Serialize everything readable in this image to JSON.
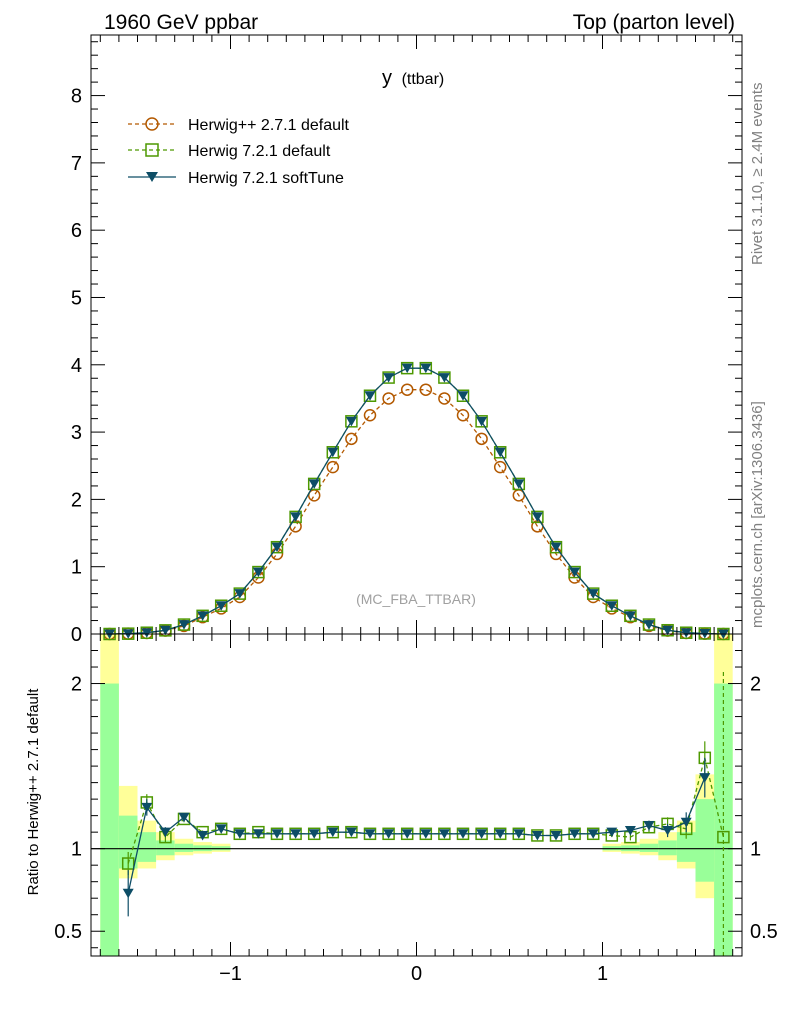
{
  "header": {
    "left": "1960 GeV ppbar",
    "right": "Top (parton level)"
  },
  "side_labels": {
    "rivet": "Rivet 3.1.10, ≥ 2.4M events",
    "mcplots": "mcplots.cern.ch [arXiv:1306.3436]"
  },
  "analysis_tag": "(MC_FBA_TTBAR)",
  "plot_title": {
    "main": "y",
    "sub": "(ttbar)"
  },
  "ratio_ylabel": "Ratio to Herwig++ 2.7.1 default",
  "colors": {
    "herwigpp": "#b35900",
    "herwig72": "#4d9900",
    "softtune": "#0d4d66",
    "band_yellow": "#ffff99",
    "band_green": "#99ff99"
  },
  "chart_data": {
    "type": "line",
    "xlim": [
      -1.75,
      1.75
    ],
    "main_ylim": [
      0,
      8.9
    ],
    "ratio_ylim": [
      0.35,
      2.3
    ],
    "x_ticks": [
      -1,
      0,
      1
    ],
    "x_tick_labels": [
      "−1",
      "0",
      "1"
    ],
    "main_y_ticks": [
      0,
      1,
      2,
      3,
      4,
      5,
      6,
      7,
      8
    ],
    "main_y_tick_labels": [
      "0",
      "1",
      "2",
      "3",
      "4",
      "5",
      "6",
      "7",
      "8"
    ],
    "ratio_y_ticks": [
      0.5,
      1,
      2
    ],
    "ratio_y_tick_labels": [
      "0.5",
      "1",
      "2"
    ],
    "x": [
      -1.65,
      -1.55,
      -1.45,
      -1.35,
      -1.25,
      -1.15,
      -1.05,
      -0.95,
      -0.85,
      -0.75,
      -0.65,
      -0.55,
      -0.45,
      -0.35,
      -0.25,
      -0.15,
      -0.05,
      0.05,
      0.15,
      0.25,
      0.35,
      0.45,
      0.55,
      0.65,
      0.75,
      0.85,
      0.95,
      1.05,
      1.15,
      1.25,
      1.35,
      1.45,
      1.55,
      1.65
    ],
    "series": [
      {
        "name": "Herwig++ 2.7.1 default",
        "values": [
          0.0,
          0.005,
          0.015,
          0.05,
          0.12,
          0.25,
          0.38,
          0.55,
          0.84,
          1.19,
          1.6,
          2.06,
          2.48,
          2.9,
          3.25,
          3.5,
          3.63,
          3.63,
          3.5,
          3.25,
          2.9,
          2.48,
          2.06,
          1.6,
          1.19,
          0.84,
          0.55,
          0.38,
          0.25,
          0.12,
          0.05,
          0.015,
          0.005,
          0.0
        ]
      },
      {
        "name": "Herwig 7.2.1 default",
        "values": [
          0.0,
          0.005,
          0.019,
          0.054,
          0.14,
          0.27,
          0.42,
          0.6,
          0.92,
          1.29,
          1.74,
          2.23,
          2.7,
          3.16,
          3.54,
          3.81,
          3.95,
          3.95,
          3.81,
          3.54,
          3.16,
          2.7,
          2.23,
          1.74,
          1.29,
          0.92,
          0.6,
          0.42,
          0.27,
          0.14,
          0.056,
          0.019,
          0.008,
          0.0
        ]
      },
      {
        "name": "Herwig 7.2.1 softTune",
        "values": [
          0.0,
          0.004,
          0.019,
          0.055,
          0.14,
          0.27,
          0.42,
          0.6,
          0.92,
          1.29,
          1.74,
          2.23,
          2.7,
          3.16,
          3.54,
          3.81,
          3.95,
          3.95,
          3.81,
          3.54,
          3.16,
          2.7,
          2.23,
          1.74,
          1.29,
          0.92,
          0.6,
          0.42,
          0.27,
          0.14,
          0.055,
          0.019,
          0.007,
          0.0
        ]
      }
    ],
    "ratio": {
      "x": [
        -1.55,
        -1.45,
        -1.35,
        -1.25,
        -1.15,
        -1.05,
        -0.95,
        -0.85,
        -0.75,
        -0.65,
        -0.55,
        -0.45,
        -0.35,
        -0.25,
        -0.15,
        -0.05,
        0.05,
        0.15,
        0.25,
        0.35,
        0.45,
        0.55,
        0.65,
        0.75,
        0.85,
        0.95,
        1.05,
        1.15,
        1.25,
        1.35,
        1.45,
        1.55,
        1.65
      ],
      "series": [
        {
          "name": "Herwig 7.2.1 default",
          "values": [
            0.91,
            1.28,
            1.07,
            1.18,
            1.1,
            1.12,
            1.09,
            1.1,
            1.09,
            1.09,
            1.09,
            1.1,
            1.1,
            1.09,
            1.09,
            1.09,
            1.09,
            1.09,
            1.09,
            1.09,
            1.09,
            1.09,
            1.08,
            1.08,
            1.09,
            1.09,
            1.08,
            1.07,
            1.13,
            1.15,
            1.12,
            1.55,
            1.07
          ],
          "errors": [
            0.07,
            0.05,
            0.03,
            0.02,
            0.01,
            0.01,
            0.01,
            0.01,
            0.01,
            0.01,
            0.01,
            0.01,
            0.01,
            0.01,
            0.01,
            0.01,
            0.01,
            0.01,
            0.01,
            0.01,
            0.01,
            0.01,
            0.01,
            0.01,
            0.01,
            0.01,
            0.01,
            0.02,
            0.03,
            0.04,
            0.06,
            0.1,
            1.0
          ]
        },
        {
          "name": "Herwig 7.2.1 softTune",
          "values": [
            0.73,
            1.25,
            1.1,
            1.19,
            1.08,
            1.12,
            1.09,
            1.09,
            1.09,
            1.09,
            1.09,
            1.1,
            1.1,
            1.09,
            1.09,
            1.09,
            1.09,
            1.09,
            1.09,
            1.09,
            1.09,
            1.09,
            1.08,
            1.08,
            1.09,
            1.09,
            1.1,
            1.11,
            1.14,
            1.11,
            1.16,
            1.43,
            null
          ],
          "errors": [
            0.14,
            0.05,
            0.03,
            0.02,
            0.01,
            0.01,
            0.01,
            0.01,
            0.01,
            0.01,
            0.01,
            0.01,
            0.01,
            0.01,
            0.01,
            0.01,
            0.01,
            0.01,
            0.01,
            0.01,
            0.01,
            0.01,
            0.01,
            0.01,
            0.01,
            0.01,
            0.01,
            0.02,
            0.03,
            0.04,
            0.06,
            0.12,
            null
          ]
        }
      ],
      "bands": [
        {
          "x0": -1.7,
          "x1": -1.6,
          "yellow": [
            0.33,
            2.3
          ],
          "green": [
            0.33,
            2.0
          ]
        },
        {
          "x0": -1.6,
          "x1": -1.5,
          "yellow": [
            0.82,
            1.38
          ],
          "green": [
            0.88,
            1.2
          ]
        },
        {
          "x0": -1.5,
          "x1": -1.4,
          "yellow": [
            0.88,
            1.17
          ],
          "green": [
            0.92,
            1.1
          ]
        },
        {
          "x0": -1.4,
          "x1": -1.3,
          "yellow": [
            0.93,
            1.1
          ],
          "green": [
            0.96,
            1.05
          ]
        },
        {
          "x0": -1.3,
          "x1": -1.2,
          "yellow": [
            0.96,
            1.06
          ],
          "green": [
            0.98,
            1.03
          ]
        },
        {
          "x0": -1.2,
          "x1": -1.1,
          "yellow": [
            0.97,
            1.04
          ],
          "green": [
            0.985,
            1.02
          ]
        },
        {
          "x0": -1.1,
          "x1": -1.0,
          "yellow": [
            0.98,
            1.03
          ],
          "green": [
            0.99,
            1.015
          ]
        },
        {
          "x0": 1.0,
          "x1": 1.1,
          "yellow": [
            0.98,
            1.03
          ],
          "green": [
            0.99,
            1.015
          ]
        },
        {
          "x0": 1.1,
          "x1": 1.2,
          "yellow": [
            0.97,
            1.04
          ],
          "green": [
            0.985,
            1.02
          ]
        },
        {
          "x0": 1.2,
          "x1": 1.3,
          "yellow": [
            0.96,
            1.06
          ],
          "green": [
            0.98,
            1.03
          ]
        },
        {
          "x0": 1.3,
          "x1": 1.4,
          "yellow": [
            0.93,
            1.1
          ],
          "green": [
            0.96,
            1.05
          ]
        },
        {
          "x0": 1.4,
          "x1": 1.5,
          "yellow": [
            0.88,
            1.17
          ],
          "green": [
            0.92,
            1.1
          ]
        },
        {
          "x0": 1.5,
          "x1": 1.6,
          "yellow": [
            0.7,
            1.45
          ],
          "green": [
            0.8,
            1.3
          ]
        },
        {
          "x0": 1.6,
          "x1": 1.7,
          "yellow": [
            0.33,
            2.3
          ],
          "green": [
            0.33,
            2.0
          ]
        }
      ]
    }
  }
}
